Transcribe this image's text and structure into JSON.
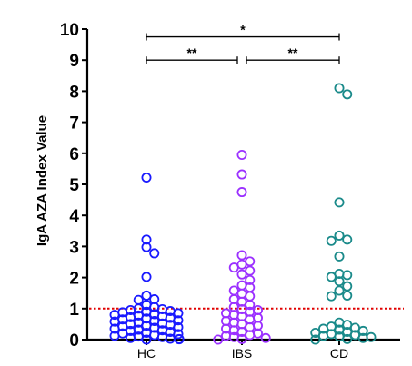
{
  "chart_data": {
    "type": "scatter",
    "ylabel": "IgA AZA Index Value",
    "ylim": [
      0,
      10
    ],
    "yticks": [
      0,
      1,
      2,
      3,
      4,
      5,
      6,
      7,
      8,
      9,
      10
    ],
    "categories": [
      "HC",
      "IBS",
      "CD"
    ],
    "cutoff": {
      "value": 1,
      "color": "#e00000",
      "style": "dotted"
    },
    "grid": false,
    "legend": "none",
    "series": [
      {
        "category": "HC",
        "color": "#1a1aff",
        "values": [
          5.22,
          3.22,
          2.98,
          2.78,
          2.02,
          1.42,
          1.3,
          1.28,
          1.12,
          1.05,
          1.0,
          0.98,
          0.95,
          0.92,
          0.9,
          0.88,
          0.85,
          0.82,
          0.8,
          0.78,
          0.75,
          0.72,
          0.7,
          0.68,
          0.65,
          0.62,
          0.6,
          0.58,
          0.55,
          0.52,
          0.5,
          0.48,
          0.45,
          0.42,
          0.4,
          0.38,
          0.35,
          0.32,
          0.3,
          0.28,
          0.25,
          0.22,
          0.2,
          0.18,
          0.15,
          0.12,
          0.1,
          0.08,
          0.05,
          0.03,
          0.02,
          0.01,
          0.0
        ]
      },
      {
        "category": "IBS",
        "color": "#9b30ff",
        "values": [
          5.95,
          5.32,
          4.75,
          2.72,
          2.52,
          2.42,
          2.32,
          2.22,
          2.1,
          1.92,
          1.75,
          1.68,
          1.58,
          1.48,
          1.4,
          1.3,
          1.22,
          1.12,
          1.05,
          0.98,
          0.95,
          0.9,
          0.85,
          0.8,
          0.75,
          0.7,
          0.65,
          0.6,
          0.55,
          0.5,
          0.45,
          0.4,
          0.35,
          0.3,
          0.25,
          0.2,
          0.15,
          0.12,
          0.08,
          0.05,
          0.02,
          0.0
        ]
      },
      {
        "category": "CD",
        "color": "#1a8a8a",
        "values": [
          8.1,
          7.9,
          4.42,
          3.35,
          3.22,
          3.18,
          2.68,
          2.12,
          2.08,
          2.02,
          1.88,
          1.72,
          1.58,
          1.42,
          1.4,
          0.55,
          0.48,
          0.42,
          0.38,
          0.35,
          0.32,
          0.28,
          0.25,
          0.22,
          0.18,
          0.15,
          0.12,
          0.1,
          0.08,
          0.05,
          0.02,
          0.0
        ]
      }
    ],
    "significance": [
      {
        "from": "HC",
        "to": "CD",
        "label": "*",
        "y": 9.75
      },
      {
        "from": "HC",
        "to": "IBS",
        "label": "**",
        "y": 9.0
      },
      {
        "from": "IBS",
        "to": "CD",
        "label": "**",
        "y": 9.0
      }
    ]
  }
}
